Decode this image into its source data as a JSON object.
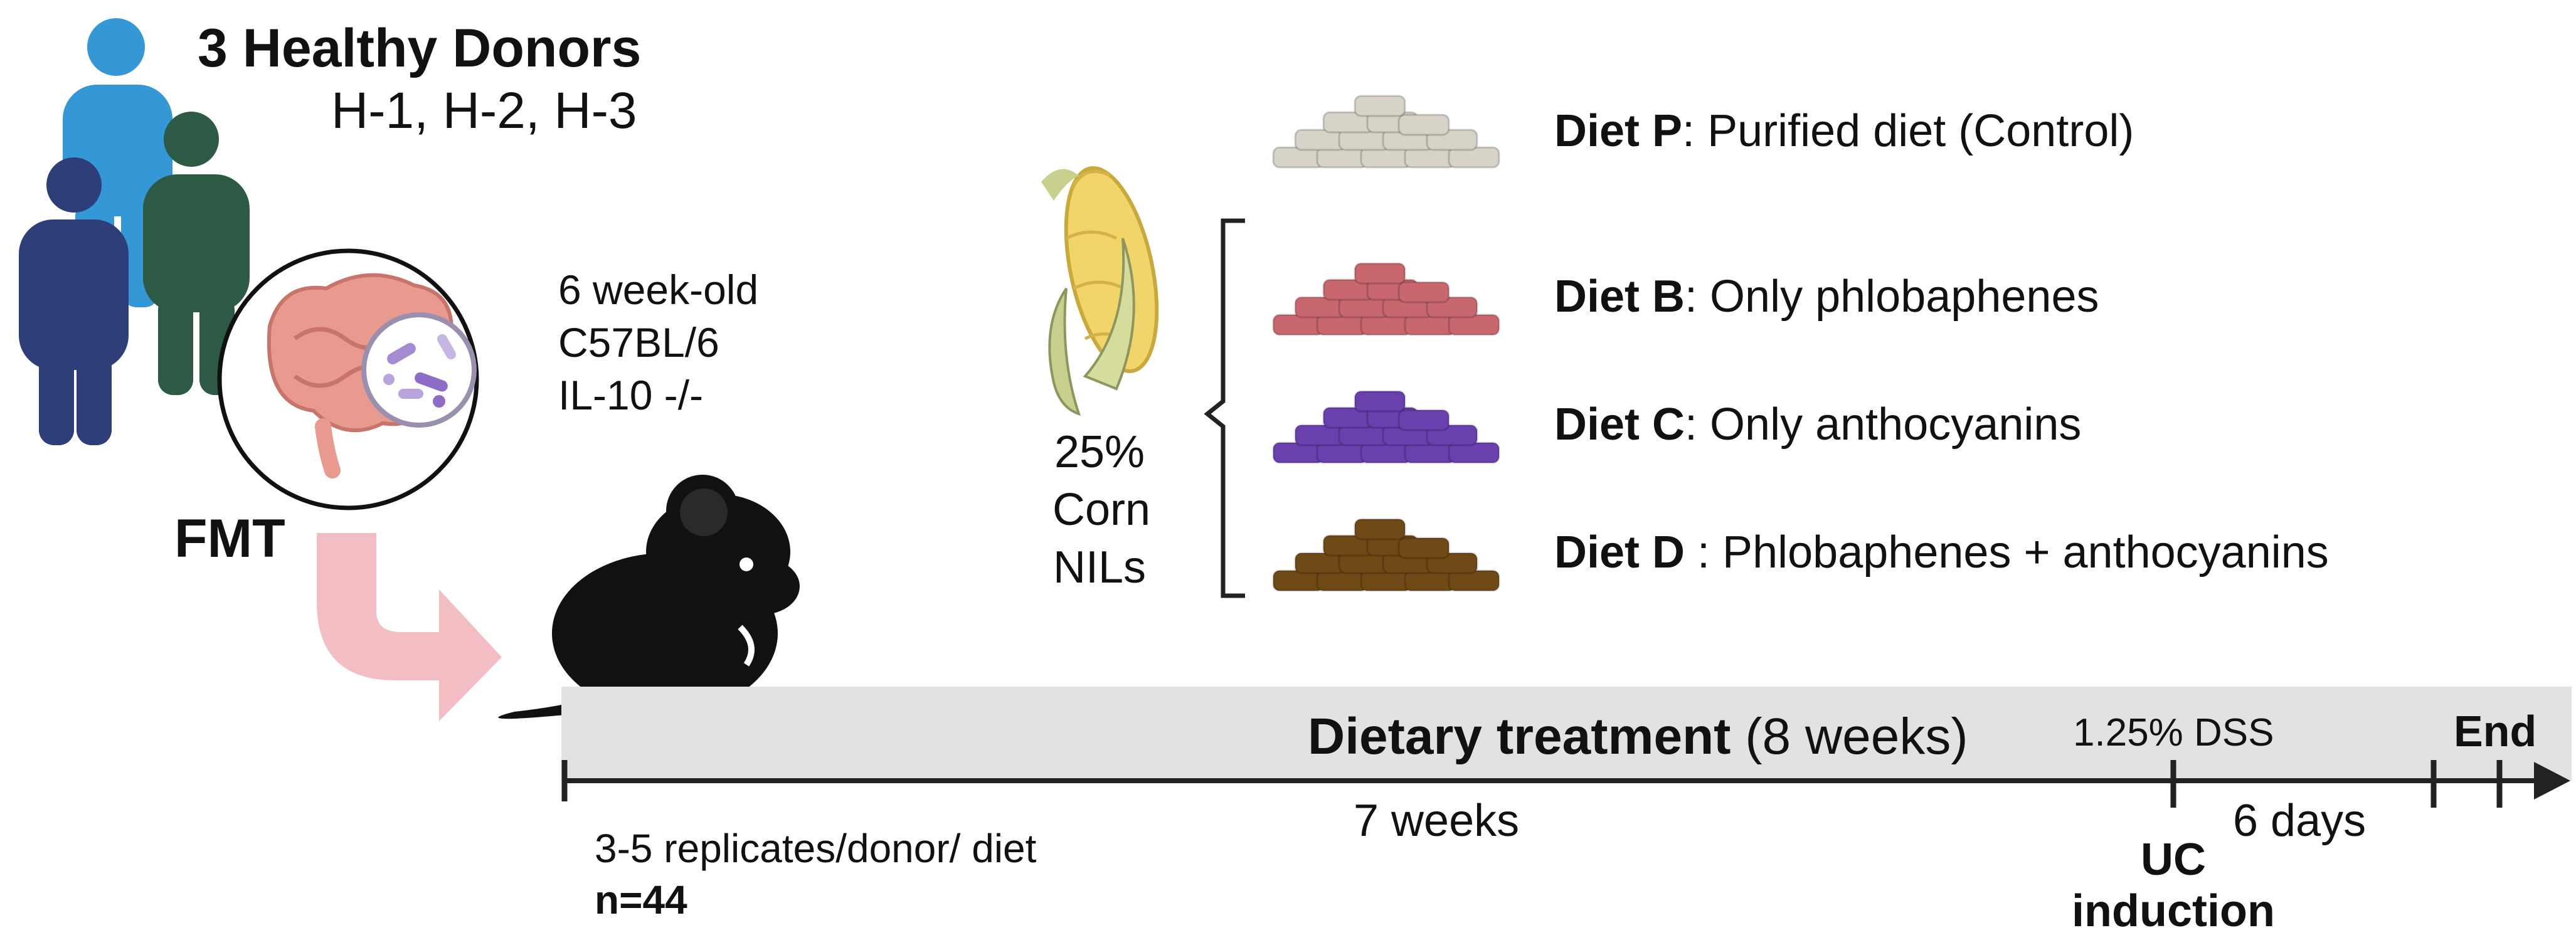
{
  "donors": {
    "title": "3 Healthy Donors",
    "ids": "H-1, H-2, H-3"
  },
  "mouse": {
    "lines": [
      "6 week-old",
      "C57BL/6",
      "IL-10 -/-"
    ]
  },
  "fmt_label": "FMT",
  "corn": {
    "lines": [
      "25%",
      "Corn",
      "NILs"
    ]
  },
  "diets": [
    {
      "name": "Diet P",
      "sep": ": ",
      "desc": "Purified diet (Control)",
      "color": "#d8d3c8"
    },
    {
      "name": "Diet B",
      "sep": ": ",
      "desc": "Only phlobaphenes",
      "color": "#c9676f"
    },
    {
      "name": "Diet C",
      "sep": ": ",
      "desc": "Only anthocyanins",
      "color": "#6a3fae"
    },
    {
      "name": "Diet D",
      "sep": " : ",
      "desc": "Phlobaphenes + anthocyanins",
      "color": "#6f4a16"
    }
  ],
  "timeline": {
    "treatment_bold": "Dietary treatment",
    "treatment_rest": " (8 weeks)",
    "dss": "1.25% DSS",
    "end": "End",
    "phase1": "7 weeks",
    "phase2": "6 days",
    "uc_line1": "UC",
    "uc_line2": "induction"
  },
  "replicates": {
    "text": "3-5 replicates/donor/ diet",
    "n": "n=44"
  },
  "colors": {
    "donor1": "#3497d6",
    "donor2": "#2c5a44",
    "donor3": "#2d3e78",
    "timeline_band": "#e2e2e2",
    "fmt_arrow": "#f0b3b8",
    "mouse": "#111111",
    "corn": "#f2d56a",
    "husk": "#c9cf8c"
  }
}
